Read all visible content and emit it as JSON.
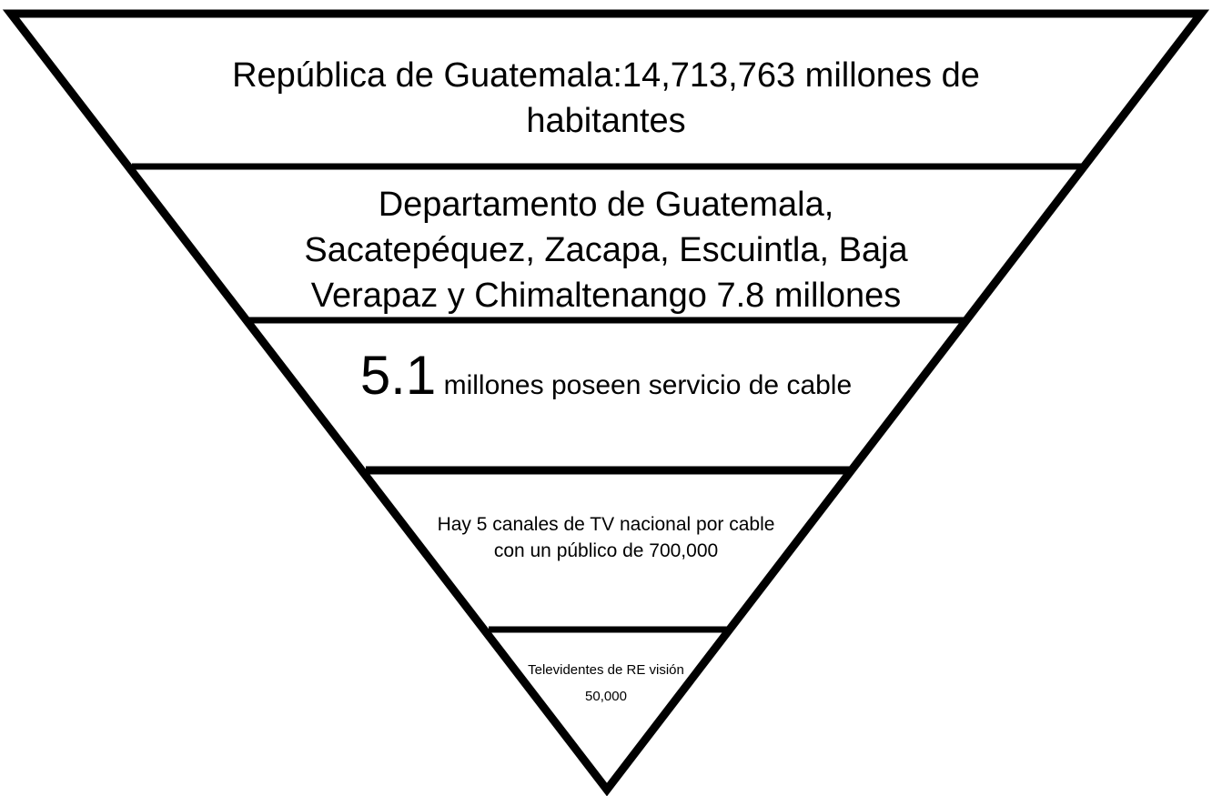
{
  "colors": {
    "stroke": "#000000",
    "fill": "#ffffff",
    "text": "#000000"
  },
  "funnel": {
    "tiers": [
      {
        "text": "República de Guatemala:14,713,763 millones de habitantes"
      },
      {
        "text": "Departamento de Guatemala, Sacatepéquez, Zacapa, Escuintla, Baja Verapaz y Chimaltenango 7.8 millones"
      },
      {
        "big_number": "5.1",
        "text": "millones poseen  servicio de cable"
      },
      {
        "text": "Hay 5 canales de TV nacional por cable con un público de 700,000"
      },
      {
        "text": "Televidentes de RE visión 50,000"
      }
    ]
  }
}
